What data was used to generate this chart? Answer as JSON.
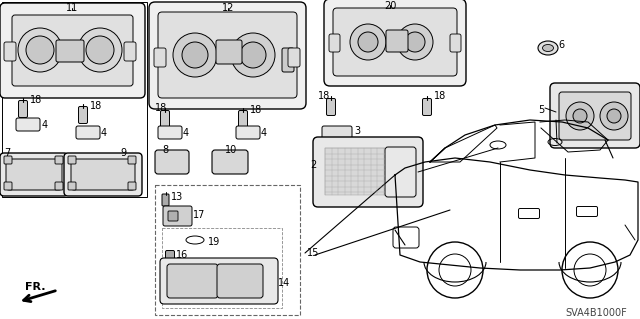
{
  "bg_color": "#ffffff",
  "line_color": "#000000",
  "diagram_ref": "SVA4B1000F",
  "figsize": [
    6.4,
    3.19
  ],
  "dpi": 100
}
